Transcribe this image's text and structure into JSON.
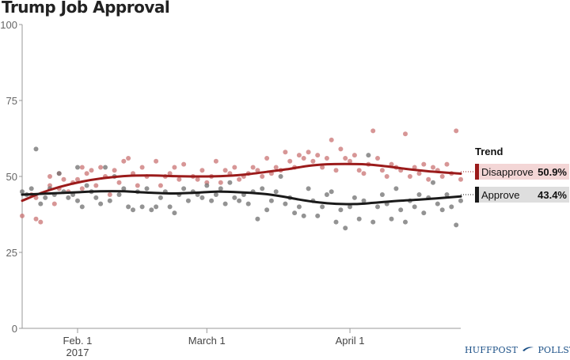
{
  "colors": {
    "approve": "#1a1a1a",
    "approve_dots": "#6f6f6f",
    "disapprove": "#9b1b1b",
    "disapprove_dots": "#c97373",
    "disapprove_label_bg": "#f3d6d6",
    "approve_label_bg": "#dedede",
    "axis": "#999999",
    "branding": "#1a4f86"
  },
  "branding": {
    "left": "HUFFPOST",
    "icon": "swoosh-icon",
    "right": "POLLSTER"
  },
  "chart_data": {
    "type": "scatter",
    "title": "Trump Job Approval",
    "ylim": [
      0,
      100
    ],
    "yticks": [
      "0",
      "25",
      "50",
      "75",
      "100"
    ],
    "xlim": [
      "2017-01-20",
      "2017-04-25"
    ],
    "xticks": [
      {
        "date": "2017-02-01",
        "label": "Feb. 1",
        "sublabel": "2017"
      },
      {
        "date": "2017-03-01",
        "label": "March 1",
        "sublabel": ""
      },
      {
        "date": "2017-04-01",
        "label": "April 1",
        "sublabel": ""
      }
    ],
    "legend_title": "Trend",
    "series": [
      {
        "name": "Disapprove",
        "latest": "50.9%",
        "trend": [
          [
            "2017-01-20",
            42
          ],
          [
            "2017-01-24",
            44.5
          ],
          [
            "2017-01-28",
            46.5
          ],
          [
            "2017-02-02",
            48.3
          ],
          [
            "2017-02-07",
            49.5
          ],
          [
            "2017-02-12",
            50.2
          ],
          [
            "2017-02-17",
            50.3
          ],
          [
            "2017-02-22",
            50.1
          ],
          [
            "2017-02-27",
            50
          ],
          [
            "2017-03-04",
            50.1
          ],
          [
            "2017-03-09",
            50.6
          ],
          [
            "2017-03-14",
            51.5
          ],
          [
            "2017-03-19",
            52.5
          ],
          [
            "2017-03-23",
            53.5
          ],
          [
            "2017-03-27",
            54
          ],
          [
            "2017-03-31",
            54.1
          ],
          [
            "2017-04-04",
            54
          ],
          [
            "2017-04-08",
            53.5
          ],
          [
            "2017-04-13",
            52.5
          ],
          [
            "2017-04-18",
            51.7
          ],
          [
            "2017-04-25",
            50.9
          ]
        ],
        "points": [
          [
            "2017-01-20",
            37
          ],
          [
            "2017-01-22",
            44
          ],
          [
            "2017-01-23",
            43
          ],
          [
            "2017-01-23",
            36
          ],
          [
            "2017-01-24",
            35
          ],
          [
            "2017-01-26",
            50
          ],
          [
            "2017-01-26",
            47
          ],
          [
            "2017-01-27",
            41
          ],
          [
            "2017-01-28",
            51
          ],
          [
            "2017-01-28",
            46
          ],
          [
            "2017-01-29",
            49
          ],
          [
            "2017-01-30",
            45
          ],
          [
            "2017-01-31",
            48
          ],
          [
            "2017-02-01",
            49
          ],
          [
            "2017-02-02",
            53
          ],
          [
            "2017-02-02",
            46
          ],
          [
            "2017-02-03",
            51
          ],
          [
            "2017-02-04",
            52
          ],
          [
            "2017-02-05",
            47
          ],
          [
            "2017-02-06",
            53
          ],
          [
            "2017-02-07",
            50
          ],
          [
            "2017-02-08",
            44
          ],
          [
            "2017-02-09",
            52
          ],
          [
            "2017-02-10",
            48
          ],
          [
            "2017-02-11",
            55
          ],
          [
            "2017-02-12",
            56
          ],
          [
            "2017-02-13",
            51
          ],
          [
            "2017-02-14",
            47
          ],
          [
            "2017-02-15",
            53
          ],
          [
            "2017-02-16",
            50
          ],
          [
            "2017-02-18",
            55
          ],
          [
            "2017-02-19",
            47
          ],
          [
            "2017-02-20",
            50
          ],
          [
            "2017-02-21",
            51
          ],
          [
            "2017-02-22",
            53
          ],
          [
            "2017-02-23",
            49
          ],
          [
            "2017-02-24",
            54
          ],
          [
            "2017-02-26",
            50
          ],
          [
            "2017-02-27",
            49
          ],
          [
            "2017-02-28",
            52
          ],
          [
            "2017-03-01",
            48
          ],
          [
            "2017-03-02",
            50
          ],
          [
            "2017-03-03",
            55
          ],
          [
            "2017-03-04",
            48
          ],
          [
            "2017-03-05",
            52
          ],
          [
            "2017-03-06",
            51
          ],
          [
            "2017-03-07",
            53
          ],
          [
            "2017-03-08",
            49
          ],
          [
            "2017-03-09",
            50
          ],
          [
            "2017-03-10",
            51
          ],
          [
            "2017-03-11",
            53
          ],
          [
            "2017-03-12",
            52
          ],
          [
            "2017-03-13",
            50
          ],
          [
            "2017-03-14",
            56
          ],
          [
            "2017-03-15",
            51
          ],
          [
            "2017-03-16",
            53
          ],
          [
            "2017-03-17",
            52
          ],
          [
            "2017-03-18",
            58
          ],
          [
            "2017-03-19",
            55
          ],
          [
            "2017-03-20",
            53
          ],
          [
            "2017-03-21",
            57
          ],
          [
            "2017-03-22",
            56
          ],
          [
            "2017-03-23",
            58
          ],
          [
            "2017-03-24",
            55
          ],
          [
            "2017-03-25",
            57
          ],
          [
            "2017-03-26",
            53
          ],
          [
            "2017-03-27",
            56
          ],
          [
            "2017-03-28",
            62
          ],
          [
            "2017-03-29",
            52
          ],
          [
            "2017-03-30",
            59
          ],
          [
            "2017-03-31",
            56
          ],
          [
            "2017-04-01",
            55
          ],
          [
            "2017-04-02",
            57
          ],
          [
            "2017-04-03",
            52
          ],
          [
            "2017-04-04",
            51
          ],
          [
            "2017-04-05",
            54
          ],
          [
            "2017-04-06",
            65
          ],
          [
            "2017-04-07",
            56
          ],
          [
            "2017-04-08",
            52
          ],
          [
            "2017-04-09",
            50
          ],
          [
            "2017-04-10",
            54
          ],
          [
            "2017-04-11",
            53
          ],
          [
            "2017-04-12",
            52
          ],
          [
            "2017-04-13",
            64
          ],
          [
            "2017-04-14",
            50
          ],
          [
            "2017-04-15",
            53
          ],
          [
            "2017-04-16",
            51
          ],
          [
            "2017-04-17",
            54
          ],
          [
            "2017-04-18",
            49
          ],
          [
            "2017-04-19",
            53
          ],
          [
            "2017-04-20",
            52
          ],
          [
            "2017-04-21",
            50
          ],
          [
            "2017-04-22",
            54
          ],
          [
            "2017-04-23",
            51
          ],
          [
            "2017-04-24",
            65
          ],
          [
            "2017-04-25",
            49
          ]
        ]
      },
      {
        "name": "Approve",
        "latest": "43.4%",
        "trend": [
          [
            "2017-01-20",
            44
          ],
          [
            "2017-01-26",
            44.4
          ],
          [
            "2017-02-01",
            44.8
          ],
          [
            "2017-02-06",
            45.1
          ],
          [
            "2017-02-11",
            45.1
          ],
          [
            "2017-02-16",
            44.7
          ],
          [
            "2017-02-21",
            44.4
          ],
          [
            "2017-02-26",
            44.6
          ],
          [
            "2017-03-03",
            45
          ],
          [
            "2017-03-08",
            44.8
          ],
          [
            "2017-03-13",
            44.3
          ],
          [
            "2017-03-17",
            43.5
          ],
          [
            "2017-03-21",
            42.4
          ],
          [
            "2017-03-25",
            41.5
          ],
          [
            "2017-03-29",
            41
          ],
          [
            "2017-04-02",
            40.9
          ],
          [
            "2017-04-06",
            41.3
          ],
          [
            "2017-04-10",
            41.8
          ],
          [
            "2017-04-15",
            42.3
          ],
          [
            "2017-04-20",
            42.8
          ],
          [
            "2017-04-25",
            43.4
          ]
        ],
        "points": [
          [
            "2017-01-20",
            45
          ],
          [
            "2017-01-21",
            44
          ],
          [
            "2017-01-22",
            46
          ],
          [
            "2017-01-23",
            59
          ],
          [
            "2017-01-24",
            41
          ],
          [
            "2017-01-25",
            43
          ],
          [
            "2017-01-26",
            46
          ],
          [
            "2017-01-27",
            44
          ],
          [
            "2017-01-28",
            51
          ],
          [
            "2017-01-29",
            45
          ],
          [
            "2017-01-30",
            43
          ],
          [
            "2017-01-31",
            44
          ],
          [
            "2017-02-01",
            42
          ],
          [
            "2017-02-01",
            53
          ],
          [
            "2017-02-02",
            40
          ],
          [
            "2017-02-03",
            47
          ],
          [
            "2017-02-04",
            45
          ],
          [
            "2017-02-05",
            43
          ],
          [
            "2017-02-06",
            41
          ],
          [
            "2017-02-07",
            53
          ],
          [
            "2017-02-08",
            42
          ],
          [
            "2017-02-09",
            50
          ],
          [
            "2017-02-10",
            44
          ],
          [
            "2017-02-11",
            46
          ],
          [
            "2017-02-12",
            40
          ],
          [
            "2017-02-13",
            39
          ],
          [
            "2017-02-14",
            45
          ],
          [
            "2017-02-15",
            40
          ],
          [
            "2017-02-16",
            46
          ],
          [
            "2017-02-17",
            39
          ],
          [
            "2017-02-18",
            40
          ],
          [
            "2017-02-19",
            43
          ],
          [
            "2017-02-20",
            45
          ],
          [
            "2017-02-21",
            40
          ],
          [
            "2017-02-22",
            38
          ],
          [
            "2017-02-23",
            44
          ],
          [
            "2017-02-24",
            46
          ],
          [
            "2017-02-25",
            42
          ],
          [
            "2017-02-26",
            45
          ],
          [
            "2017-02-27",
            44
          ],
          [
            "2017-02-28",
            43
          ],
          [
            "2017-03-01",
            47
          ],
          [
            "2017-03-02",
            42
          ],
          [
            "2017-03-03",
            44
          ],
          [
            "2017-03-04",
            46
          ],
          [
            "2017-03-05",
            41
          ],
          [
            "2017-03-06",
            48
          ],
          [
            "2017-03-07",
            43
          ],
          [
            "2017-03-08",
            42
          ],
          [
            "2017-03-09",
            44
          ],
          [
            "2017-03-10",
            41
          ],
          [
            "2017-03-11",
            45
          ],
          [
            "2017-03-12",
            36
          ],
          [
            "2017-03-13",
            46
          ],
          [
            "2017-03-14",
            39
          ],
          [
            "2017-03-15",
            42
          ],
          [
            "2017-03-16",
            45
          ],
          [
            "2017-03-17",
            50
          ],
          [
            "2017-03-18",
            41
          ],
          [
            "2017-03-19",
            43
          ],
          [
            "2017-03-20",
            38
          ],
          [
            "2017-03-21",
            40
          ],
          [
            "2017-03-22",
            37
          ],
          [
            "2017-03-23",
            46
          ],
          [
            "2017-03-24",
            42
          ],
          [
            "2017-03-25",
            37
          ],
          [
            "2017-03-26",
            40
          ],
          [
            "2017-03-27",
            44
          ],
          [
            "2017-03-28",
            45
          ],
          [
            "2017-03-29",
            35
          ],
          [
            "2017-03-30",
            39
          ],
          [
            "2017-03-31",
            33
          ],
          [
            "2017-04-01",
            40
          ],
          [
            "2017-04-02",
            43
          ],
          [
            "2017-04-03",
            36
          ],
          [
            "2017-04-04",
            42
          ],
          [
            "2017-04-05",
            57
          ],
          [
            "2017-04-06",
            35
          ],
          [
            "2017-04-07",
            40
          ],
          [
            "2017-04-08",
            44
          ],
          [
            "2017-04-09",
            41
          ],
          [
            "2017-04-10",
            36
          ],
          [
            "2017-04-11",
            46
          ],
          [
            "2017-04-12",
            39
          ],
          [
            "2017-04-13",
            35
          ],
          [
            "2017-04-14",
            42
          ],
          [
            "2017-04-15",
            40
          ],
          [
            "2017-04-16",
            44
          ],
          [
            "2017-04-17",
            38
          ],
          [
            "2017-04-18",
            43
          ],
          [
            "2017-04-19",
            48
          ],
          [
            "2017-04-20",
            41
          ],
          [
            "2017-04-21",
            39
          ],
          [
            "2017-04-22",
            44
          ],
          [
            "2017-04-23",
            40
          ],
          [
            "2017-04-24",
            34
          ],
          [
            "2017-04-25",
            42
          ]
        ]
      }
    ]
  }
}
